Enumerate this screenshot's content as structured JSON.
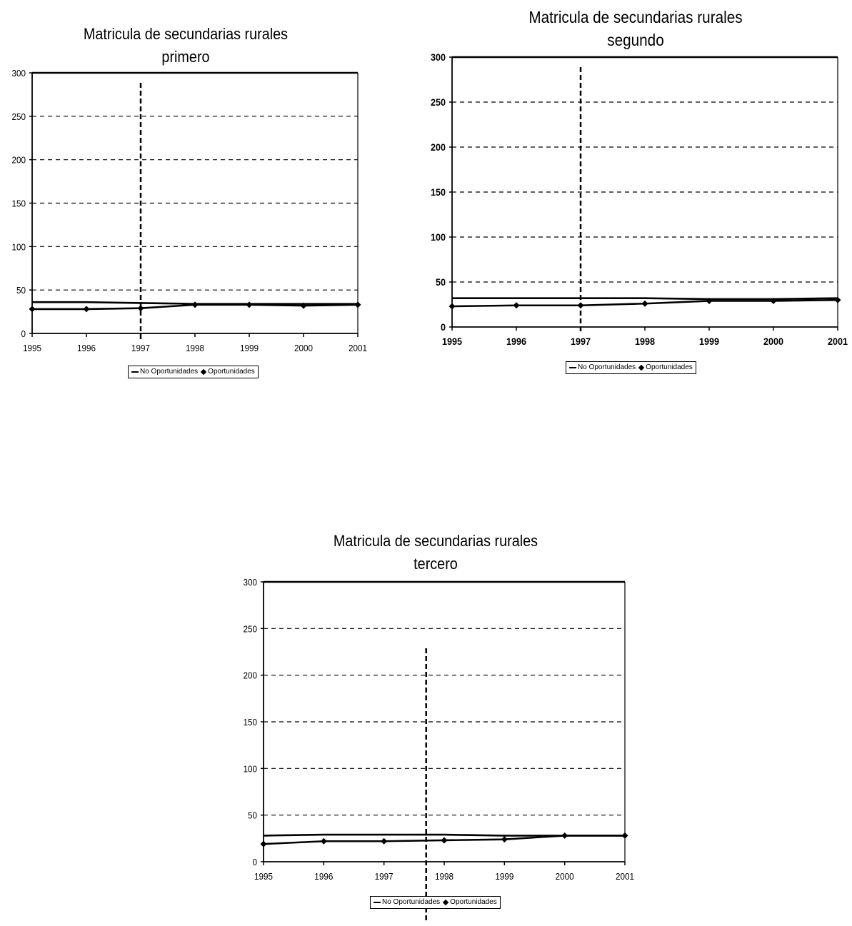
{
  "chart_data": [
    {
      "type": "line",
      "title": "Matricula de secundarias rurales",
      "subtitle": "primero",
      "x": [
        "1995",
        "1996",
        "1997",
        "1998",
        "1999",
        "2000",
        "2001"
      ],
      "ylim": [
        0,
        300
      ],
      "yticks": [
        0,
        50,
        100,
        150,
        200,
        250,
        300
      ],
      "grid": true,
      "legend_position": "bottom",
      "vertical_marker": "1997",
      "series": [
        {
          "name": "No Oportunidades",
          "marker": "none",
          "values": [
            36,
            36,
            35,
            34,
            34,
            34,
            34
          ]
        },
        {
          "name": "Oportunidades",
          "marker": "diamond",
          "values": [
            28,
            28,
            29,
            33,
            33,
            32,
            33
          ]
        }
      ]
    },
    {
      "type": "line",
      "title": "Matricula de secundarias rurales",
      "subtitle": "segundo",
      "x": [
        "1995",
        "1996",
        "1997",
        "1998",
        "1999",
        "2000",
        "2001"
      ],
      "ylim": [
        0,
        300
      ],
      "yticks": [
        0,
        50,
        100,
        150,
        200,
        250,
        300
      ],
      "grid": true,
      "legend_position": "bottom",
      "vertical_marker": "1997",
      "series": [
        {
          "name": "No Oportunidades",
          "marker": "none",
          "values": [
            32,
            32,
            32,
            32,
            31,
            31,
            32
          ]
        },
        {
          "name": "Oportunidades",
          "marker": "diamond",
          "values": [
            23,
            24,
            24,
            26,
            29,
            29,
            30
          ]
        }
      ]
    },
    {
      "type": "line",
      "title": "Matricula de secundarias rurales",
      "subtitle": "tercero",
      "x": [
        "1995",
        "1996",
        "1997",
        "1998",
        "1999",
        "2000",
        "2001"
      ],
      "ylim": [
        0,
        300
      ],
      "yticks": [
        0,
        50,
        100,
        150,
        200,
        250,
        300
      ],
      "grid": true,
      "legend_position": "bottom",
      "vertical_marker": "1997.7",
      "series": [
        {
          "name": "No Oportunidades",
          "marker": "none",
          "values": [
            28,
            29,
            29,
            29,
            28,
            28,
            28
          ]
        },
        {
          "name": "Oportunidades",
          "marker": "diamond",
          "values": [
            19,
            22,
            22,
            23,
            24,
            28,
            28
          ]
        }
      ]
    }
  ]
}
